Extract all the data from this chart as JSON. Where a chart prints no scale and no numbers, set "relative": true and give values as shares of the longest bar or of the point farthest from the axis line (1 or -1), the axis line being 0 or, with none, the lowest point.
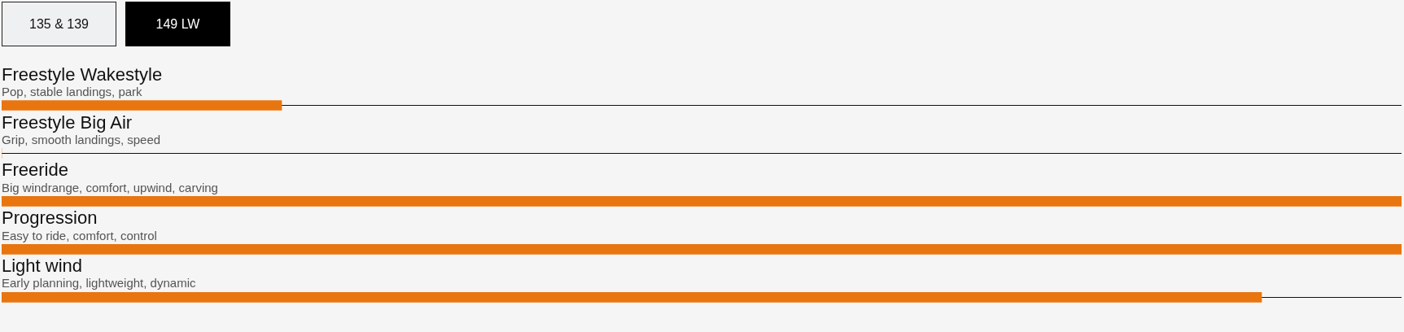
{
  "chart_data": {
    "type": "bar",
    "orientation": "horizontal",
    "relative": true,
    "categories": [
      "Freestyle Wakestyle",
      "Freestyle Big Air",
      "Freeride",
      "Progression",
      "Light wind"
    ],
    "values": [
      0.2,
      0,
      1,
      1,
      0.9
    ],
    "color": "#e8750f",
    "grid": "y",
    "annotations": [
      "135 & 139",
      "149 LW",
      "Pop, stable landings, park",
      "Grip, smooth landings, speed",
      "Big windrange, comfort, upwind, carving",
      "Easy to ride, comfort, control",
      "Early planning, lightweight, dynamic"
    ]
  }
}
